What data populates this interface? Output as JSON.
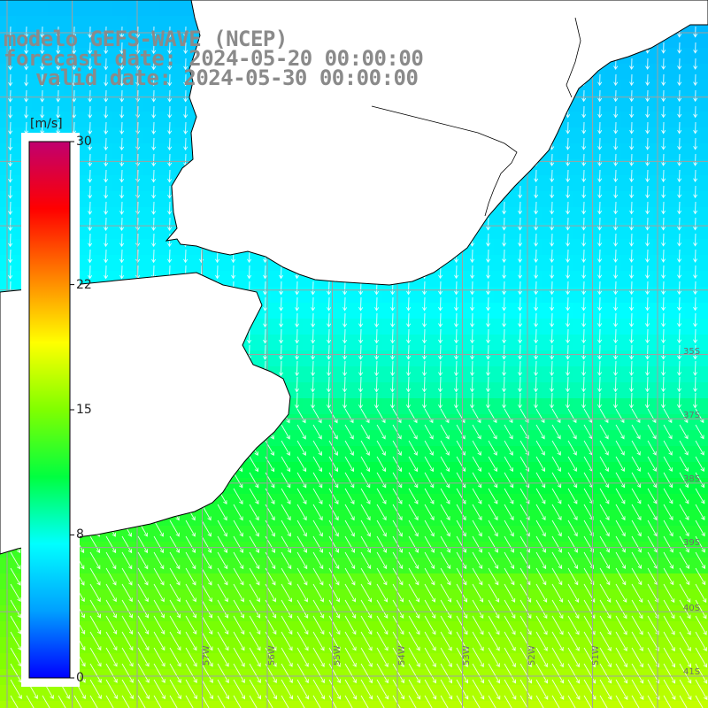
{
  "title": {
    "line1": "modelo GEFS-WAVE (NCEP)",
    "line2": "forecast date: 2024-05-20 00:00:00",
    "line3": "valid date: 2024-05-30 00:00:00"
  },
  "colorbar": {
    "unit": "[m/s]",
    "ticks": [
      {
        "value": 30,
        "label": "30"
      },
      {
        "value": 22,
        "label": "22"
      },
      {
        "value": 15,
        "label": "15"
      },
      {
        "value": 8,
        "label": "8"
      },
      {
        "value": 0,
        "label": "0"
      }
    ],
    "range": [
      0,
      30
    ],
    "stops": [
      "#0000ff",
      "#00a0ff",
      "#00ffff",
      "#00ff40",
      "#80ff00",
      "#ffff00",
      "#ff8000",
      "#ff0000",
      "#c00070"
    ]
  },
  "axes": {
    "lat_labels": [
      "35S",
      "37S",
      "38S",
      "39S",
      "40S",
      "41S"
    ],
    "lon_labels": [
      "57W",
      "56W",
      "55W",
      "54W",
      "53W",
      "52W",
      "51W"
    ]
  },
  "field": {
    "variable": "wind speed",
    "arrow_direction": "towards south / south-southeast",
    "speed_summary": [
      {
        "region": "north-east coastal strip",
        "speed_ms": 5
      },
      {
        "region": "river estuary / central band",
        "speed_ms": 7
      },
      {
        "region": "middle band",
        "speed_ms": 11
      },
      {
        "region": "southern band",
        "speed_ms": 14
      },
      {
        "region": "south-east corner",
        "speed_ms": 16
      }
    ]
  },
  "colors": {
    "land": "#ffffff",
    "coastline": "#000000",
    "grid": "#a0a0a0",
    "arrow": "#ffffff",
    "title_text": "#8a8a8a"
  }
}
